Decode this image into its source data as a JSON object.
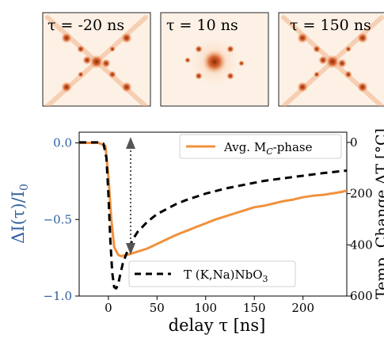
{
  "panels": [
    {
      "label": "τ = -20 ns",
      "pattern": "cross"
    },
    {
      "label": "τ = 10 ns",
      "pattern": "center"
    },
    {
      "label": "τ = 150 ns",
      "pattern": "cross"
    }
  ],
  "colors": {
    "left_axis": "#2f5f9f",
    "series_avg": "#f0913e",
    "series_temp": "#000000",
    "annotation_arrow": "#555555",
    "diffraction": "#c2410c"
  },
  "chart_data": {
    "type": "line",
    "xlabel": "delay τ [ns]",
    "ylabel": "ΔI(τ)/I₀",
    "ylabel_right": "Temp. Change ΔT [°C]",
    "xlim": [
      -30,
      245
    ],
    "ylim": [
      -1.0,
      0.07
    ],
    "y2lim": [
      600,
      -40
    ],
    "x_ticks": [
      0,
      50,
      100,
      150,
      200
    ],
    "y_ticks": [
      0.0,
      -0.5,
      -1.0
    ],
    "y_tick_labels": [
      "0.0",
      "−0.5",
      "−1.0"
    ],
    "y2_ticks": [
      0,
      200,
      400,
      600
    ],
    "legend": "top-right",
    "series": [
      {
        "name": "Avg. M_C-phase",
        "axis": "left",
        "style": "solid",
        "x": [
          -30,
          -10,
          -3,
          0,
          3,
          6,
          10,
          13,
          16,
          20,
          25,
          30,
          40,
          50,
          60,
          70,
          80,
          90,
          100,
          110,
          120,
          130,
          140,
          150,
          160,
          170,
          180,
          190,
          200,
          210,
          220,
          230,
          240,
          245
        ],
        "y": [
          0,
          0,
          -0.02,
          -0.22,
          -0.5,
          -0.68,
          -0.73,
          -0.74,
          -0.735,
          -0.73,
          -0.72,
          -0.71,
          -0.69,
          -0.66,
          -0.63,
          -0.6,
          -0.575,
          -0.55,
          -0.525,
          -0.5,
          -0.48,
          -0.46,
          -0.44,
          -0.42,
          -0.41,
          -0.395,
          -0.38,
          -0.37,
          -0.355,
          -0.345,
          -0.34,
          -0.33,
          -0.32,
          -0.31
        ]
      },
      {
        "name": "T (K,Na)NbO₃",
        "axis": "right",
        "style": "dashed",
        "x": [
          -30,
          -10,
          -5,
          -2,
          0,
          2,
          4,
          6,
          8,
          10,
          12,
          15,
          20,
          25,
          30,
          40,
          50,
          60,
          70,
          80,
          100,
          120,
          140,
          160,
          180,
          200,
          220,
          245
        ],
        "y": [
          0,
          0,
          5,
          60,
          200,
          380,
          510,
          565,
          570,
          555,
          520,
          470,
          420,
          380,
          350,
          310,
          280,
          260,
          240,
          225,
          200,
          180,
          165,
          150,
          140,
          130,
          120,
          110
        ]
      }
    ]
  }
}
